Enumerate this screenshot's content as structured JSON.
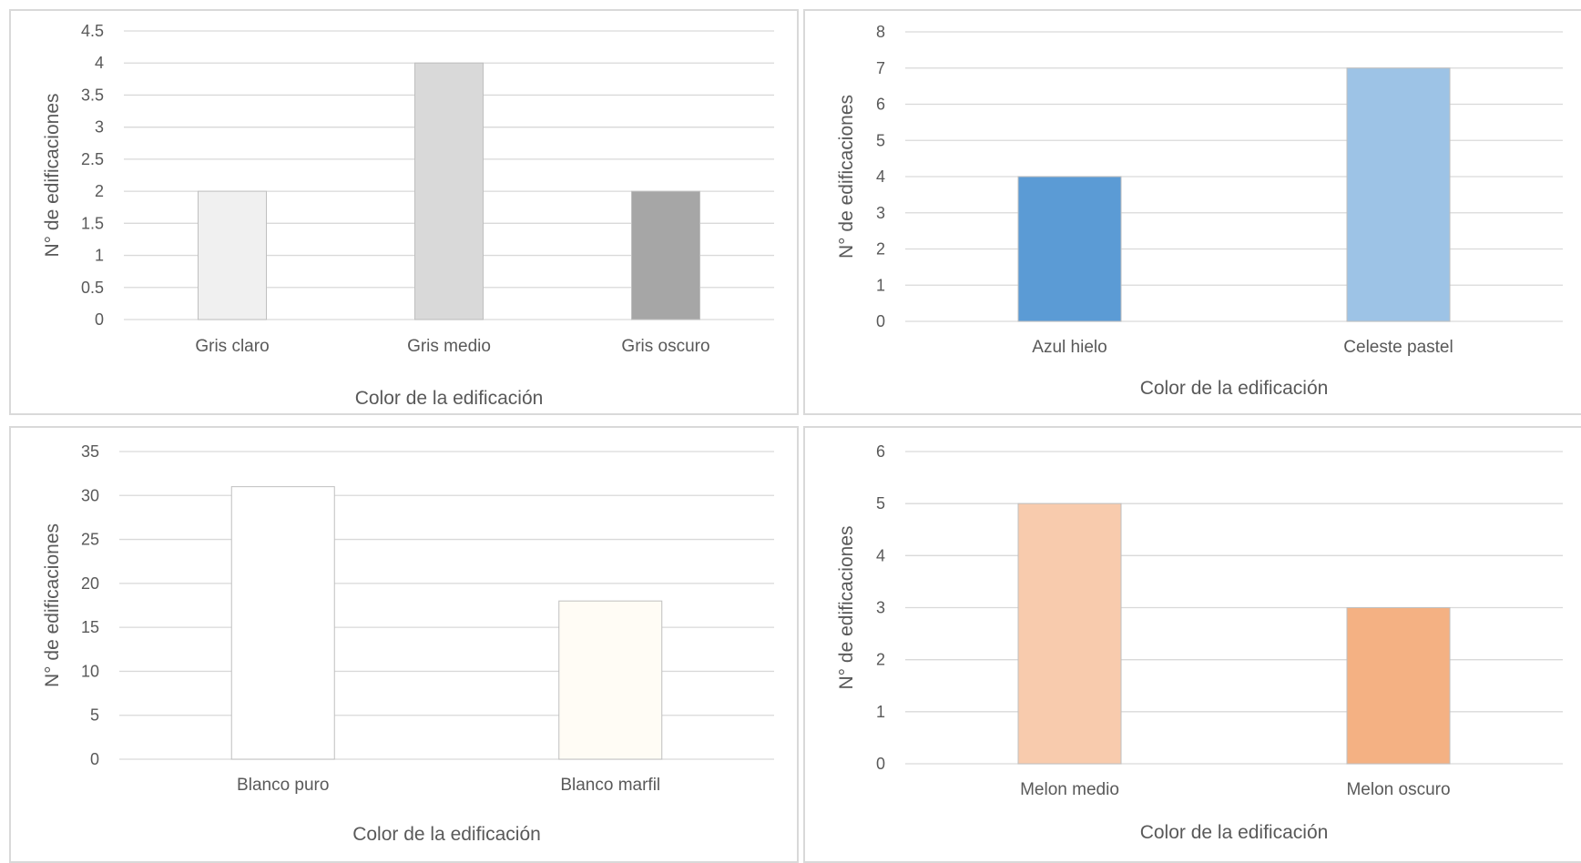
{
  "chart_data": [
    {
      "type": "bar",
      "categories": [
        "Gris claro",
        "Gris medio",
        "Gris oscuro"
      ],
      "values": [
        2,
        4,
        2
      ],
      "colors": [
        "#f0f0f0",
        "#d9d9d9",
        "#a6a6a6"
      ],
      "title": "",
      "xlabel": "Color de la edificación",
      "ylabel": "N° de edificaciones",
      "ylim": [
        0,
        4.5
      ],
      "yticks": [
        "0",
        "0.5",
        "1",
        "1.5",
        "2",
        "2.5",
        "3",
        "3.5",
        "4",
        "4.5"
      ],
      "grid": true
    },
    {
      "type": "bar",
      "categories": [
        "Azul hielo",
        "Celeste pastel"
      ],
      "values": [
        4,
        7
      ],
      "colors": [
        "#5b9bd5",
        "#9dc3e6"
      ],
      "title": "",
      "xlabel": "Color de la edificación",
      "ylabel": "N° de edificaciones",
      "ylim": [
        0,
        8
      ],
      "yticks": [
        "0",
        "1",
        "2",
        "3",
        "4",
        "5",
        "6",
        "7",
        "8"
      ],
      "grid": true
    },
    {
      "type": "bar",
      "categories": [
        "Blanco puro",
        "Blanco marfil"
      ],
      "values": [
        31,
        18
      ],
      "colors": [
        "#ffffff",
        "#fffcf5"
      ],
      "title": "",
      "xlabel": "Color de la edificación",
      "ylabel": "N° de edificaciones",
      "ylim": [
        0,
        35
      ],
      "yticks": [
        "0",
        "5",
        "10",
        "15",
        "20",
        "25",
        "30",
        "35"
      ],
      "grid": true
    },
    {
      "type": "bar",
      "categories": [
        "Melon medio",
        "Melon oscuro"
      ],
      "values": [
        5,
        3
      ],
      "colors": [
        "#f8cbad",
        "#f4b183"
      ],
      "title": "",
      "xlabel": "Color de la edificación",
      "ylabel": "N° de edificaciones",
      "ylim": [
        0,
        6
      ],
      "yticks": [
        "0",
        "1",
        "2",
        "3",
        "4",
        "5",
        "6"
      ],
      "grid": true
    }
  ],
  "style": {
    "grid_color": "#d9d9d9",
    "text_color": "#595959",
    "bar_border": "#bfbfbf"
  }
}
